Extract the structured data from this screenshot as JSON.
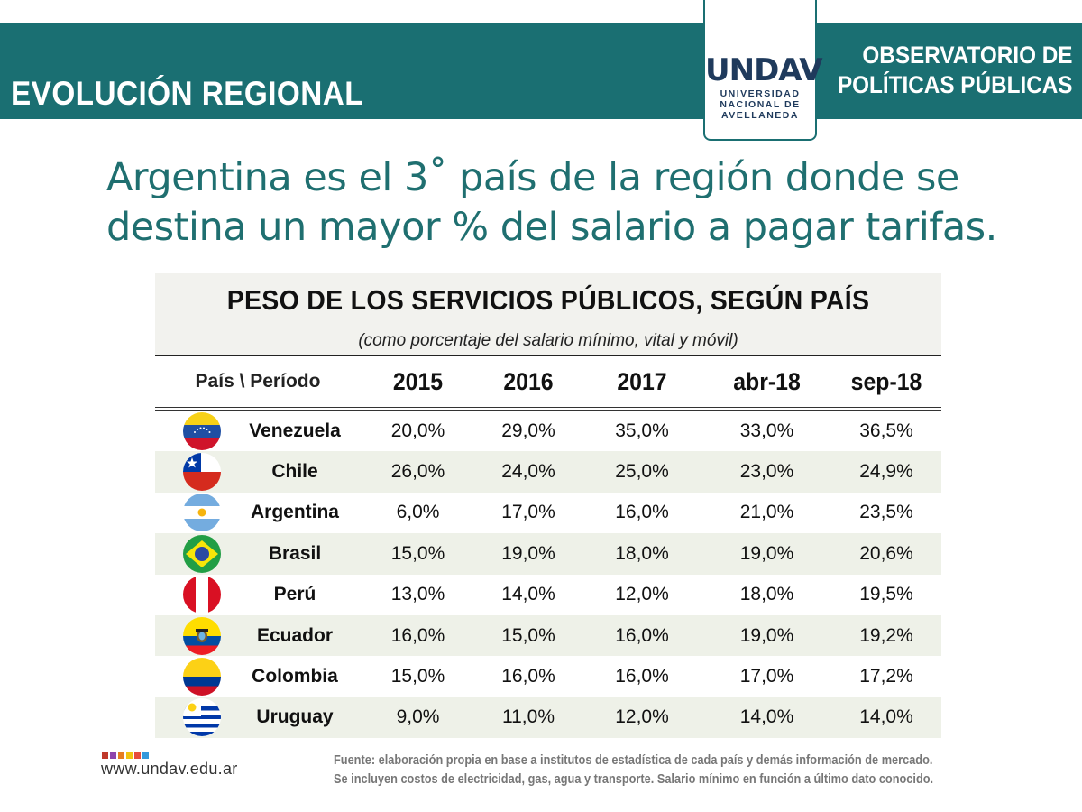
{
  "header": {
    "title": "EVOLUCIÓN REGIONAL",
    "logo": {
      "mark": "UNDAV",
      "line1": "UNIVERSIDAD",
      "line2": "NACIONAL DE",
      "line3": "AVELLANEDA"
    },
    "observatory_line1": "OBSERVATORIO DE",
    "observatory_line2": "POLÍTICAS PÚBLICAS",
    "color": "#1a6f72"
  },
  "headline_line1": "Argentina es el 3˚ país de la región donde se",
  "headline_line2": "destina un mayor % del salario a pagar tarifas.",
  "table": {
    "title": "PESO DE LOS SERVICIOS PÚBLICOS, SEGÚN PAÍS",
    "subtitle": "(como porcentaje del salario mínimo, vital y móvil)",
    "country_header": "País \\ Período",
    "columns": [
      "2015",
      "2016",
      "2017",
      "abr-18",
      "sep-18"
    ],
    "rows": [
      {
        "country": "Venezuela",
        "flag": "venezuela-flag-icon",
        "values": [
          "20,0%",
          "29,0%",
          "35,0%",
          "33,0%",
          "36,5%"
        ]
      },
      {
        "country": "Chile",
        "flag": "chile-flag-icon",
        "values": [
          "26,0%",
          "24,0%",
          "25,0%",
          "23,0%",
          "24,9%"
        ]
      },
      {
        "country": "Argentina",
        "flag": "argentina-flag-icon",
        "values": [
          "6,0%",
          "17,0%",
          "16,0%",
          "21,0%",
          "23,5%"
        ]
      },
      {
        "country": "Brasil",
        "flag": "brasil-flag-icon",
        "values": [
          "15,0%",
          "19,0%",
          "18,0%",
          "19,0%",
          "20,6%"
        ]
      },
      {
        "country": "Perú",
        "flag": "peru-flag-icon",
        "values": [
          "13,0%",
          "14,0%",
          "12,0%",
          "18,0%",
          "19,5%"
        ]
      },
      {
        "country": "Ecuador",
        "flag": "ecuador-flag-icon",
        "values": [
          "16,0%",
          "15,0%",
          "16,0%",
          "19,0%",
          "19,2%"
        ]
      },
      {
        "country": "Colombia",
        "flag": "colombia-flag-icon",
        "values": [
          "15,0%",
          "16,0%",
          "16,0%",
          "17,0%",
          "17,2%"
        ]
      },
      {
        "country": "Uruguay",
        "flag": "uruguay-flag-icon",
        "values": [
          "9,0%",
          "11,0%",
          "12,0%",
          "14,0%",
          "14,0%"
        ]
      }
    ]
  },
  "footer": {
    "dot_colors": [
      "#c0392b",
      "#8e44ad",
      "#e67e22",
      "#f1c40f",
      "#e74c3c",
      "#3498db"
    ],
    "website": "www.undav.edu.ar",
    "source_line1": "Fuente: elaboración propia en base a institutos de estadística de cada país y demás información de mercado.",
    "source_line2": "Se incluyen costos de electricidad, gas, agua y transporte. Salario mínimo en función a último dato conocido."
  }
}
